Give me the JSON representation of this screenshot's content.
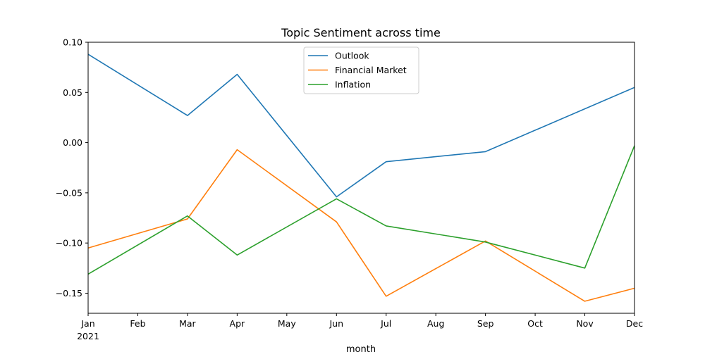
{
  "chart_data": {
    "type": "line",
    "title": "Topic Sentiment across time",
    "xlabel": "month",
    "ylabel": "",
    "x": [
      "Jan",
      "Feb",
      "Mar",
      "Apr",
      "May",
      "Jun",
      "Jul",
      "Aug",
      "Sep",
      "Oct",
      "Nov",
      "Dec"
    ],
    "x_year_label": "2021",
    "ylim": [
      -0.17,
      0.1
    ],
    "yticks": [
      0.1,
      0.05,
      0.0,
      -0.05,
      -0.1,
      -0.15
    ],
    "ytick_labels": [
      "0.10",
      "0.05",
      "0.00",
      "−0.05",
      "−0.10",
      "−0.15"
    ],
    "grid": false,
    "legend_position": "upper center",
    "series": [
      {
        "name": "Outlook",
        "color": "#1f77b4",
        "points": [
          [
            0,
            0.088
          ],
          [
            2,
            0.027
          ],
          [
            3,
            0.068
          ],
          [
            5,
            -0.054
          ],
          [
            6,
            -0.019
          ],
          [
            8,
            -0.009
          ],
          [
            11,
            0.055
          ]
        ]
      },
      {
        "name": "Financial Market",
        "color": "#ff7f0e",
        "points": [
          [
            0,
            -0.105
          ],
          [
            2,
            -0.076
          ],
          [
            3,
            -0.007
          ],
          [
            5,
            -0.079
          ],
          [
            6,
            -0.153
          ],
          [
            8,
            -0.098
          ],
          [
            10,
            -0.158
          ],
          [
            11,
            -0.145
          ]
        ]
      },
      {
        "name": "Inflation",
        "color": "#2ca02c",
        "points": [
          [
            0,
            -0.131
          ],
          [
            2,
            -0.073
          ],
          [
            3,
            -0.112
          ],
          [
            5,
            -0.056
          ],
          [
            6,
            -0.083
          ],
          [
            8,
            -0.099
          ],
          [
            10,
            -0.125
          ],
          [
            11,
            -0.003
          ]
        ]
      }
    ]
  }
}
